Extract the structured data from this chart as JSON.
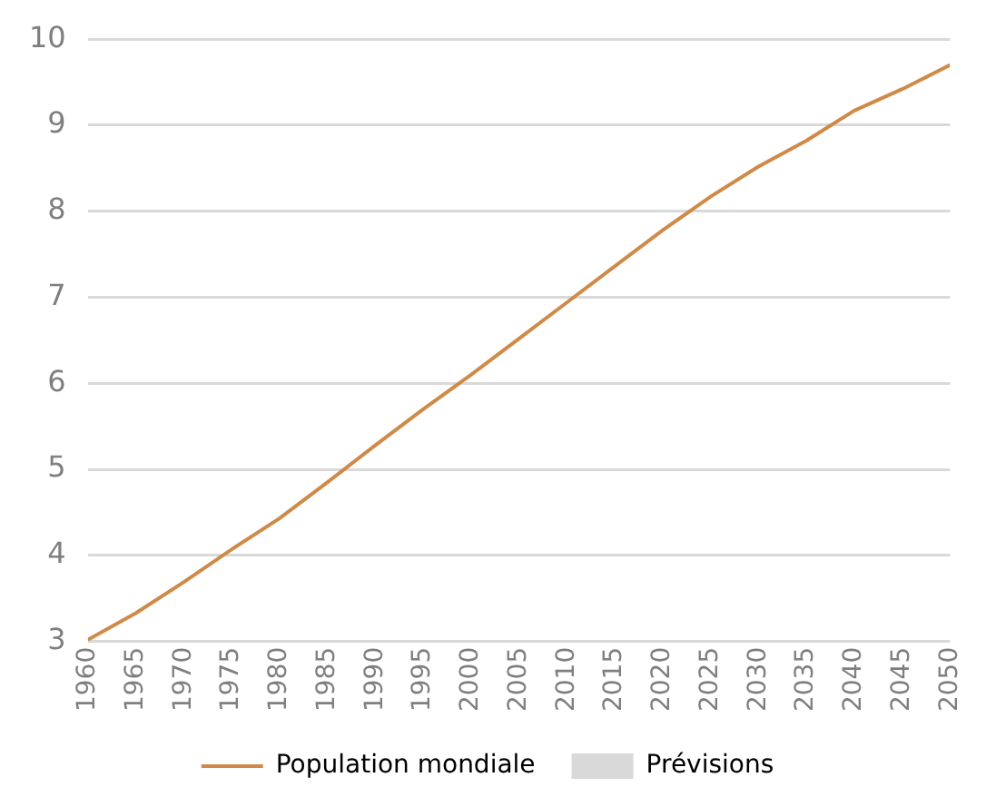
{
  "chart_data": {
    "type": "line",
    "x": [
      1960,
      1965,
      1970,
      1975,
      1980,
      1985,
      1990,
      1995,
      2000,
      2005,
      2010,
      2015,
      2020,
      2025,
      2030,
      2035,
      2040,
      2045,
      2050
    ],
    "series": [
      {
        "name": "Population mondiale",
        "color": "#d08a48",
        "values": [
          3.02,
          3.33,
          3.69,
          4.07,
          4.43,
          4.85,
          5.28,
          5.7,
          6.1,
          6.52,
          6.94,
          7.36,
          7.78,
          8.17,
          8.52,
          8.82,
          9.17,
          9.42,
          9.7
        ]
      },
      {
        "name": "Prévisions",
        "type": "area",
        "color": "#d9d9d9",
        "values": [
          null,
          null,
          null,
          null,
          null,
          null,
          null,
          null,
          null,
          null,
          null,
          null,
          null,
          null,
          null,
          null,
          null,
          null,
          null
        ]
      }
    ],
    "xlim": [
      1960,
      2050
    ],
    "xticks": [
      1960,
      1965,
      1970,
      1975,
      1980,
      1985,
      1990,
      1995,
      2000,
      2005,
      2010,
      2015,
      2020,
      2025,
      2030,
      2035,
      2040,
      2045,
      2050
    ],
    "ylim": [
      3,
      10
    ],
    "yticks": [
      3,
      4,
      5,
      6,
      7,
      8,
      9,
      10
    ],
    "grid": "y",
    "legend": "bottom",
    "marker": "none",
    "line_style": "solid"
  }
}
